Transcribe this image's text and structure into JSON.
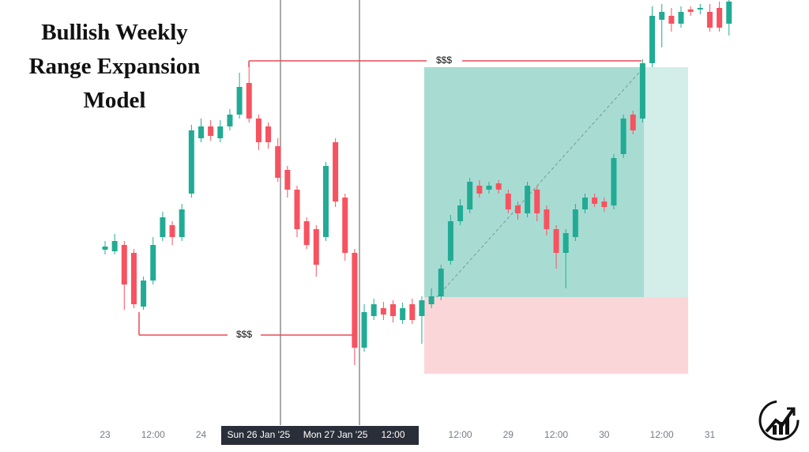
{
  "chart_data": {
    "type": "candlestick",
    "title": "Bullish Weekly Range Expansion Model",
    "annotations": [
      "$$$",
      "$$$"
    ],
    "up_color": "#22ab94",
    "down_color": "#f7525f",
    "ylim": [
      0,
      470
    ],
    "categories": [
      "23",
      null,
      null,
      null,
      null,
      "12:00",
      null,
      null,
      null,
      null,
      "24",
      null,
      null,
      null,
      null,
      null,
      "Sun 26 Jan '25",
      null,
      null,
      null,
      null,
      null,
      null,
      null,
      "Mon 27 Jan '25",
      null,
      null,
      null,
      null,
      null,
      "12:00",
      null,
      null,
      null,
      null,
      null,
      null,
      "12:00",
      null,
      null,
      null,
      null,
      "29",
      null,
      null,
      null,
      null,
      "12:00",
      null,
      null,
      null,
      null,
      "30",
      null,
      null,
      null,
      null,
      null,
      "12:00",
      null,
      null,
      null,
      null,
      "31",
      null,
      null
    ],
    "open": [
      154,
      152,
      160,
      150,
      82,
      115,
      170,
      185,
      170,
      225,
      295,
      310,
      295,
      310,
      325,
      365,
      320,
      310,
      285,
      255,
      230,
      190,
      180,
      170,
      290,
      220,
      150,
      30,
      70,
      80,
      85,
      65,
      85,
      70,
      85,
      95,
      140,
      190,
      205,
      235,
      230,
      238,
      225,
      210,
      200,
      230,
      205,
      180,
      150,
      170,
      205,
      220,
      215,
      210,
      275,
      325,
      320,
      390,
      445,
      450,
      440,
      458,
      458,
      455,
      460,
      440
    ],
    "high": [
      165,
      174,
      165,
      155,
      120,
      170,
      202,
      190,
      212,
      312,
      320,
      318,
      318,
      332,
      378,
      390,
      325,
      315,
      295,
      260,
      235,
      195,
      185,
      265,
      295,
      225,
      155,
      85,
      92,
      88,
      90,
      87,
      92,
      95,
      105,
      135,
      198,
      218,
      245,
      242,
      240,
      242,
      230,
      215,
      240,
      235,
      210,
      185,
      180,
      212,
      225,
      225,
      220,
      275,
      325,
      330,
      395,
      462,
      465,
      460,
      462,
      462,
      465,
      465,
      468,
      470
    ],
    "low": [
      148,
      148,
      78,
      80,
      78,
      110,
      165,
      160,
      165,
      220,
      290,
      292,
      290,
      305,
      320,
      315,
      280,
      282,
      240,
      220,
      170,
      155,
      120,
      165,
      208,
      140,
      8,
      25,
      65,
      65,
      62,
      60,
      60,
      35,
      80,
      90,
      135,
      185,
      200,
      220,
      225,
      225,
      200,
      192,
      195,
      190,
      172,
      130,
      105,
      165,
      200,
      208,
      202,
      205,
      270,
      300,
      315,
      385,
      410,
      430,
      435,
      450,
      452,
      430,
      430,
      425
    ],
    "close": [
      158,
      165,
      110,
      85,
      115,
      160,
      195,
      170,
      205,
      305,
      310,
      298,
      310,
      325,
      360,
      320,
      290,
      290,
      245,
      230,
      180,
      160,
      135,
      260,
      215,
      150,
      30,
      75,
      85,
      72,
      70,
      80,
      65,
      90,
      95,
      130,
      190,
      210,
      240,
      225,
      235,
      230,
      205,
      200,
      235,
      200,
      180,
      150,
      175,
      205,
      220,
      212,
      208,
      270,
      320,
      305,
      390,
      450,
      455,
      440,
      455,
      455,
      460,
      435,
      435,
      468
    ]
  }
}
